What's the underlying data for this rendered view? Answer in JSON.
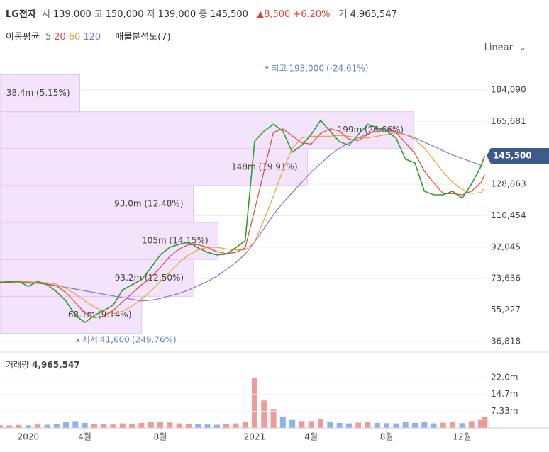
{
  "header": {
    "name": "LG전자",
    "items": [
      {
        "label": "시",
        "value": "139,000"
      },
      {
        "label": "고",
        "value": "150,000"
      },
      {
        "label": "저",
        "value": "139,000"
      },
      {
        "label": "종",
        "value": "145,500"
      }
    ],
    "change": "8,500",
    "change_pct": "+6.20%",
    "volume_label": "거",
    "volume": "4,965,547",
    "ma_label": "이동평균",
    "profile_label": "매물분석도(7)",
    "scale": "Linear"
  },
  "chart_data": [
    {
      "type": "line",
      "x": [
        -1.5,
        -1,
        -0.5,
        0,
        0.5,
        1,
        1.5,
        2,
        2.5,
        3,
        3.5,
        4,
        4.5,
        5,
        5.5,
        6,
        6.5,
        7,
        7.5,
        8,
        8.5,
        9,
        9.5,
        10,
        10.5,
        11,
        11.5,
        12,
        12.5,
        13,
        13.5,
        14,
        14.5,
        15,
        15.5,
        16,
        16.5,
        17,
        17.5,
        18,
        18.5,
        19,
        19.5,
        20,
        20.5,
        21,
        21.5,
        22,
        22.5,
        23,
        23.5,
        24,
        24.2
      ],
      "series": [
        {
          "name": "5",
          "color": "#2ca02c",
          "values": [
            71000,
            72000,
            72000,
            69000,
            72000,
            70000,
            66000,
            60500,
            52000,
            48000,
            52000,
            55000,
            58000,
            67000,
            70000,
            73000,
            80000,
            87500,
            92000,
            93700,
            95000,
            91700,
            89000,
            87500,
            88000,
            91700,
            95800,
            154000,
            160000,
            164000,
            160000,
            147600,
            151700,
            158000,
            166300,
            160000,
            153800,
            151700,
            158000,
            164000,
            162000,
            160000,
            155900,
            143500,
            141400,
            124800,
            122700,
            122700,
            124800,
            120700,
            129000,
            139300,
            145500
          ]
        },
        {
          "name": "20",
          "color": "#e8413a",
          "values": [
            71500,
            71500,
            71700,
            71000,
            71000,
            70300,
            69300,
            65500,
            59500,
            53500,
            50700,
            51700,
            55000,
            60000,
            65000,
            70000,
            74300,
            80200,
            86500,
            91000,
            93600,
            93500,
            91900,
            89400,
            88200,
            89100,
            91700,
            113800,
            136600,
            159300,
            161300,
            157200,
            153100,
            152400,
            158700,
            161400,
            160000,
            155200,
            154500,
            158000,
            161300,
            162000,
            159300,
            153100,
            146900,
            136600,
            129600,
            123400,
            123400,
            122700,
            124800,
            129700,
            134600
          ]
        },
        {
          "name": "60",
          "color": "#f0a030",
          "values": [
            72000,
            72000,
            72000,
            71800,
            71500,
            71200,
            70300,
            68000,
            64500,
            60500,
            57000,
            54500,
            53000,
            54500,
            57500,
            61500,
            66500,
            72000,
            77500,
            83000,
            87500,
            90500,
            92000,
            92000,
            91000,
            90500,
            90500,
            95000,
            108000,
            122000,
            137000,
            150000,
            156000,
            157000,
            157000,
            157000,
            157500,
            157000,
            156000,
            156000,
            157000,
            158000,
            159000,
            158000,
            155000,
            150000,
            143000,
            136000,
            130000,
            126000,
            123500,
            124000,
            126500
          ]
        },
        {
          "name": "120",
          "color": "#8a6fe0",
          "values": [
            72000,
            72000,
            72000,
            71500,
            71000,
            70500,
            69500,
            68500,
            67500,
            66500,
            65500,
            64500,
            63500,
            62500,
            61500,
            60500,
            61000,
            62000,
            63500,
            65000,
            67000,
            69500,
            72000,
            75000,
            79000,
            83000,
            88000,
            95000,
            103000,
            111000,
            118000,
            124000,
            130000,
            136000,
            141000,
            146000,
            150000,
            153000,
            156000,
            158500,
            160000,
            160500,
            159500,
            158000,
            156000,
            153500,
            151000,
            148500,
            146000,
            144000,
            142000,
            140000,
            139300
          ]
        }
      ],
      "xlim": [
        -1.5,
        24.3
      ],
      "ylim": [
        31428,
        201504
      ],
      "yticks": [
        {
          "value": 184090,
          "label": "184,090"
        },
        {
          "value": 165681,
          "label": "165,681"
        },
        {
          "value": 128863,
          "label": "128,863"
        },
        {
          "value": 110454,
          "label": "110,454"
        },
        {
          "value": 92045,
          "label": "92,045"
        },
        {
          "value": 73636,
          "label": "73,636"
        },
        {
          "value": 55227,
          "label": "55,227"
        },
        {
          "value": 36818,
          "label": "36,818"
        }
      ],
      "grid": true,
      "volume_profile": {
        "bins": [
          41600,
          63229,
          84857,
          106486,
          128114,
          149743,
          171371,
          193000
        ],
        "values": [
          68100000,
          93200000,
          105000000,
          93000000,
          148000000,
          199000000,
          38400000
        ],
        "value_labels": [
          "68.1m (9.14%)",
          "93.2m (12.50%)",
          "105m (14.15%)",
          "93.0m (12.48%)",
          "148m (19.91%)",
          "199m (26.66%)",
          "38.4m (5.15%)"
        ],
        "color": "#f4e4fb",
        "edge": "#e3c6f2"
      },
      "high": {
        "text": "최고",
        "x": 12.65,
        "value": 193000,
        "value_label": "193,000",
        "change": "(-24.61%)"
      },
      "low": {
        "text": "최저",
        "x": 2.63,
        "value": 41600,
        "value_label": "41,600",
        "change": "(249.76%)"
      },
      "current": {
        "value": 145500,
        "label": "145,500",
        "color": "#3d5a8a"
      }
    },
    {
      "type": "bar",
      "title": "거래량",
      "summary": "4,965,547",
      "x": [
        -1.5,
        -1,
        -0.5,
        0,
        0.5,
        1,
        1.5,
        2,
        2.5,
        3,
        3.5,
        4,
        4.5,
        5,
        5.5,
        6,
        6.5,
        7,
        7.5,
        8,
        8.5,
        9,
        9.5,
        10,
        10.5,
        11,
        11.5,
        12,
        12.5,
        13,
        13.5,
        14,
        14.5,
        15,
        15.5,
        16,
        16.5,
        17,
        17.5,
        18,
        18.5,
        19,
        19.5,
        20,
        20.5,
        21,
        21.5,
        22,
        22.5,
        23,
        23.5,
        24,
        24.2
      ],
      "values": [
        1200000,
        1100000,
        1300000,
        1200000,
        1500000,
        1400000,
        1800000,
        2500000,
        3000000,
        2200000,
        1800000,
        1600000,
        1500000,
        2000000,
        1900000,
        2200000,
        2800000,
        2600000,
        2400000,
        2000000,
        1800000,
        1600000,
        1500000,
        1400000,
        1600000,
        2000000,
        2500000,
        22000000,
        12000000,
        8000000,
        5000000,
        3500000,
        3000000,
        3000000,
        3800000,
        2500000,
        2200000,
        2000000,
        2300000,
        2500000,
        2200000,
        2100000,
        2000000,
        2600000,
        2200000,
        2500000,
        2000000,
        2300000,
        2600000,
        2100000,
        3000000,
        3500000,
        4965547
      ],
      "up_color": "#f19a9a",
      "down_color": "#8fb2ee",
      "xlim": [
        -1.5,
        24.3
      ],
      "ylim": [
        0,
        32300000
      ],
      "yticks": [
        {
          "value": 22000000,
          "label": "22.0m"
        },
        {
          "value": 14700000,
          "label": "14.7m"
        },
        {
          "value": 7330000,
          "label": "7.33m"
        }
      ],
      "xticks": [
        {
          "value": 0,
          "label": "2020"
        },
        {
          "value": 3,
          "label": "4월"
        },
        {
          "value": 7,
          "label": "8월"
        },
        {
          "value": 12,
          "label": "2021"
        },
        {
          "value": 15,
          "label": "4월"
        },
        {
          "value": 19,
          "label": "8월"
        },
        {
          "value": 23,
          "label": "12월"
        }
      ]
    }
  ]
}
